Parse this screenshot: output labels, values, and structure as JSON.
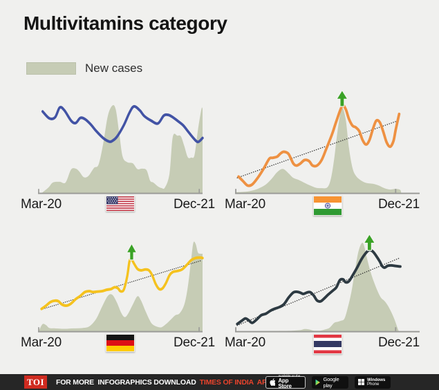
{
  "header": {
    "title": "Multivitamins category"
  },
  "legend": {
    "label": "New cases",
    "swatch_color": "#c6ccb5"
  },
  "colors": {
    "background": "#f0f0ee",
    "area": "#c6ccb5",
    "arrow_green": "#3aa226",
    "axis": "#9b9b98",
    "trend": "#2a2a2a"
  },
  "chart_data": [
    {
      "type": "area",
      "subtype": "line-over-area",
      "country": "United States",
      "flag": "us",
      "x_start_label": "Mar-20",
      "x_end_label": "Dec-21",
      "area_series_label": "New cases",
      "line_color": "#4253a5",
      "axis_ticks": [
        0.0,
        0.98
      ],
      "trend": null,
      "peak_arrow": null,
      "line": [
        [
          0.028,
          0.922
        ],
        [
          0.069,
          0.844
        ],
        [
          0.104,
          0.857
        ],
        [
          0.132,
          0.966
        ],
        [
          0.16,
          0.935
        ],
        [
          0.201,
          0.818
        ],
        [
          0.229,
          0.792
        ],
        [
          0.257,
          0.849
        ],
        [
          0.285,
          0.836
        ],
        [
          0.319,
          0.779
        ],
        [
          0.354,
          0.701
        ],
        [
          0.396,
          0.623
        ],
        [
          0.431,
          0.584
        ],
        [
          0.451,
          0.59
        ],
        [
          0.479,
          0.636
        ],
        [
          0.521,
          0.766
        ],
        [
          0.556,
          0.909
        ],
        [
          0.583,
          0.979
        ],
        [
          0.618,
          0.935
        ],
        [
          0.646,
          0.87
        ],
        [
          0.688,
          0.818
        ],
        [
          0.729,
          0.787
        ],
        [
          0.764,
          0.875
        ],
        [
          0.792,
          0.883
        ],
        [
          0.819,
          0.857
        ],
        [
          0.847,
          0.818
        ],
        [
          0.882,
          0.766
        ],
        [
          0.91,
          0.701
        ],
        [
          0.944,
          0.623
        ],
        [
          0.972,
          0.579
        ],
        [
          1.0,
          0.623
        ]
      ],
      "area": [
        [
          0.02,
          0.0
        ],
        [
          0.063,
          0.065
        ],
        [
          0.09,
          0.122
        ],
        [
          0.132,
          0.13
        ],
        [
          0.167,
          0.122
        ],
        [
          0.201,
          0.268
        ],
        [
          0.229,
          0.278
        ],
        [
          0.25,
          0.247
        ],
        [
          0.278,
          0.182
        ],
        [
          0.306,
          0.195
        ],
        [
          0.34,
          0.286
        ],
        [
          0.368,
          0.325
        ],
        [
          0.396,
          0.558
        ],
        [
          0.424,
          0.87
        ],
        [
          0.451,
          0.987
        ],
        [
          0.472,
          0.948
        ],
        [
          0.493,
          0.688
        ],
        [
          0.514,
          0.416
        ],
        [
          0.542,
          0.351
        ],
        [
          0.576,
          0.338
        ],
        [
          0.604,
          0.273
        ],
        [
          0.632,
          0.278
        ],
        [
          0.66,
          0.26
        ],
        [
          0.681,
          0.143
        ],
        [
          0.701,
          0.122
        ],
        [
          0.729,
          0.078
        ],
        [
          0.75,
          0.06
        ],
        [
          0.771,
          0.065
        ],
        [
          0.799,
          0.221
        ],
        [
          0.819,
          0.636
        ],
        [
          0.847,
          0.649
        ],
        [
          0.868,
          0.642
        ],
        [
          0.889,
          0.532
        ],
        [
          0.91,
          0.408
        ],
        [
          0.931,
          0.403
        ],
        [
          0.951,
          0.43
        ],
        [
          0.972,
          0.714
        ],
        [
          0.993,
          0.948
        ],
        [
          1.0,
          0.953
        ]
      ]
    },
    {
      "type": "area",
      "subtype": "line-over-area",
      "country": "India",
      "flag": "in",
      "x_start_label": "Mar-20",
      "x_end_label": "Dec-21",
      "area_series_label": "New cases",
      "line_color": "#ee9142",
      "axis_ticks": [
        0.0,
        0.87
      ],
      "trend": [
        [
          0.012,
          0.175
        ],
        [
          0.883,
          0.818
        ]
      ],
      "peak_arrow": [
        0.58,
        0.983
      ],
      "line": [
        [
          0.019,
          0.188
        ],
        [
          0.043,
          0.138
        ],
        [
          0.068,
          0.088
        ],
        [
          0.093,
          0.1
        ],
        [
          0.123,
          0.175
        ],
        [
          0.154,
          0.275
        ],
        [
          0.185,
          0.388
        ],
        [
          0.204,
          0.4
        ],
        [
          0.228,
          0.413
        ],
        [
          0.247,
          0.45
        ],
        [
          0.265,
          0.468
        ],
        [
          0.29,
          0.443
        ],
        [
          0.315,
          0.338
        ],
        [
          0.333,
          0.313
        ],
        [
          0.352,
          0.333
        ],
        [
          0.377,
          0.375
        ],
        [
          0.401,
          0.363
        ],
        [
          0.42,
          0.313
        ],
        [
          0.444,
          0.313
        ],
        [
          0.469,
          0.375
        ],
        [
          0.494,
          0.5
        ],
        [
          0.525,
          0.663
        ],
        [
          0.549,
          0.813
        ],
        [
          0.58,
          0.983
        ],
        [
          0.599,
          0.95
        ],
        [
          0.617,
          0.838
        ],
        [
          0.636,
          0.763
        ],
        [
          0.654,
          0.743
        ],
        [
          0.673,
          0.7
        ],
        [
          0.691,
          0.6
        ],
        [
          0.71,
          0.55
        ],
        [
          0.728,
          0.6
        ],
        [
          0.747,
          0.725
        ],
        [
          0.765,
          0.818
        ],
        [
          0.784,
          0.8
        ],
        [
          0.802,
          0.7
        ],
        [
          0.821,
          0.575
        ],
        [
          0.84,
          0.525
        ],
        [
          0.858,
          0.588
        ],
        [
          0.87,
          0.713
        ],
        [
          0.883,
          0.838
        ],
        [
          0.889,
          0.893
        ]
      ],
      "area": [
        [
          0.0,
          0.013
        ],
        [
          0.056,
          0.018
        ],
        [
          0.105,
          0.038
        ],
        [
          0.136,
          0.063
        ],
        [
          0.167,
          0.1
        ],
        [
          0.198,
          0.163
        ],
        [
          0.228,
          0.238
        ],
        [
          0.259,
          0.275
        ],
        [
          0.29,
          0.225
        ],
        [
          0.315,
          0.175
        ],
        [
          0.346,
          0.15
        ],
        [
          0.377,
          0.118
        ],
        [
          0.407,
          0.088
        ],
        [
          0.438,
          0.063
        ],
        [
          0.469,
          0.058
        ],
        [
          0.5,
          0.068
        ],
        [
          0.519,
          0.163
        ],
        [
          0.537,
          0.388
        ],
        [
          0.556,
          0.713
        ],
        [
          0.578,
          0.955
        ],
        [
          0.599,
          0.838
        ],
        [
          0.617,
          0.513
        ],
        [
          0.636,
          0.288
        ],
        [
          0.654,
          0.2
        ],
        [
          0.679,
          0.15
        ],
        [
          0.71,
          0.118
        ],
        [
          0.747,
          0.108
        ],
        [
          0.778,
          0.088
        ],
        [
          0.809,
          0.058
        ],
        [
          0.84,
          0.043
        ],
        [
          0.87,
          0.05
        ],
        [
          0.895,
          0.038
        ],
        [
          0.9,
          0.0
        ]
      ]
    },
    {
      "type": "area",
      "subtype": "line-over-area",
      "country": "Germany",
      "flag": "de",
      "x_start_label": "Mar-20",
      "x_end_label": "Dec-21",
      "area_series_label": "New cases",
      "line_color": "#f5c21e",
      "axis_ticks": [
        0.0,
        0.979
      ],
      "trend": [
        [
          0.02,
          0.25
        ],
        [
          0.986,
          0.797
        ]
      ],
      "peak_arrow": [
        0.569,
        0.812
      ],
      "line": [
        [
          0.021,
          0.256
        ],
        [
          0.049,
          0.293
        ],
        [
          0.076,
          0.334
        ],
        [
          0.104,
          0.349
        ],
        [
          0.125,
          0.341
        ],
        [
          0.146,
          0.305
        ],
        [
          0.174,
          0.293
        ],
        [
          0.201,
          0.317
        ],
        [
          0.229,
          0.366
        ],
        [
          0.257,
          0.402
        ],
        [
          0.285,
          0.446
        ],
        [
          0.313,
          0.456
        ],
        [
          0.333,
          0.446
        ],
        [
          0.361,
          0.451
        ],
        [
          0.389,
          0.456
        ],
        [
          0.417,
          0.471
        ],
        [
          0.444,
          0.48
        ],
        [
          0.465,
          0.5
        ],
        [
          0.486,
          0.488
        ],
        [
          0.5,
          0.456
        ],
        [
          0.521,
          0.471
        ],
        [
          0.542,
          0.622
        ],
        [
          0.556,
          0.793
        ],
        [
          0.569,
          0.812
        ],
        [
          0.583,
          0.768
        ],
        [
          0.604,
          0.707
        ],
        [
          0.625,
          0.69
        ],
        [
          0.653,
          0.7
        ],
        [
          0.674,
          0.69
        ],
        [
          0.694,
          0.634
        ],
        [
          0.715,
          0.537
        ],
        [
          0.736,
          0.48
        ],
        [
          0.757,
          0.488
        ],
        [
          0.778,
          0.549
        ],
        [
          0.799,
          0.634
        ],
        [
          0.819,
          0.671
        ],
        [
          0.847,
          0.683
        ],
        [
          0.875,
          0.7
        ],
        [
          0.903,
          0.749
        ],
        [
          0.931,
          0.805
        ],
        [
          0.958,
          0.829
        ],
        [
          0.986,
          0.834
        ],
        [
          1.0,
          0.829
        ]
      ],
      "area": [
        [
          0.007,
          0.017
        ],
        [
          0.028,
          0.085
        ],
        [
          0.049,
          0.073
        ],
        [
          0.069,
          0.041
        ],
        [
          0.104,
          0.037
        ],
        [
          0.16,
          0.032
        ],
        [
          0.215,
          0.037
        ],
        [
          0.271,
          0.041
        ],
        [
          0.313,
          0.061
        ],
        [
          0.354,
          0.146
        ],
        [
          0.389,
          0.28
        ],
        [
          0.424,
          0.402
        ],
        [
          0.451,
          0.415
        ],
        [
          0.479,
          0.329
        ],
        [
          0.507,
          0.207
        ],
        [
          0.528,
          0.163
        ],
        [
          0.549,
          0.207
        ],
        [
          0.576,
          0.305
        ],
        [
          0.604,
          0.398
        ],
        [
          0.625,
          0.354
        ],
        [
          0.653,
          0.232
        ],
        [
          0.674,
          0.146
        ],
        [
          0.694,
          0.085
        ],
        [
          0.722,
          0.056
        ],
        [
          0.75,
          0.049
        ],
        [
          0.778,
          0.085
        ],
        [
          0.806,
          0.134
        ],
        [
          0.833,
          0.183
        ],
        [
          0.861,
          0.207
        ],
        [
          0.889,
          0.305
        ],
        [
          0.91,
          0.5
        ],
        [
          0.931,
          0.817
        ],
        [
          0.944,
          1.0
        ],
        [
          0.958,
          0.988
        ],
        [
          0.972,
          0.89
        ],
        [
          0.986,
          0.878
        ],
        [
          1.0,
          0.878
        ]
      ]
    },
    {
      "type": "area",
      "subtype": "line-over-area",
      "country": "Thailand",
      "flag": "th",
      "x_start_label": "Mar-20",
      "x_end_label": "Dec-21",
      "area_series_label": "New cases",
      "line_color": "#2d3a42",
      "axis_ticks": [
        0.0,
        0.87
      ],
      "trend": [
        [
          0.012,
          0.07
        ],
        [
          0.889,
          0.827
        ]
      ],
      "peak_arrow": [
        0.728,
        0.919
      ],
      "line": [
        [
          0.012,
          0.086
        ],
        [
          0.037,
          0.123
        ],
        [
          0.056,
          0.148
        ],
        [
          0.074,
          0.128
        ],
        [
          0.093,
          0.099
        ],
        [
          0.117,
          0.136
        ],
        [
          0.142,
          0.185
        ],
        [
          0.167,
          0.202
        ],
        [
          0.191,
          0.235
        ],
        [
          0.216,
          0.259
        ],
        [
          0.241,
          0.277
        ],
        [
          0.265,
          0.309
        ],
        [
          0.29,
          0.383
        ],
        [
          0.315,
          0.44
        ],
        [
          0.333,
          0.449
        ],
        [
          0.352,
          0.44
        ],
        [
          0.37,
          0.425
        ],
        [
          0.389,
          0.44
        ],
        [
          0.407,
          0.444
        ],
        [
          0.426,
          0.407
        ],
        [
          0.444,
          0.351
        ],
        [
          0.463,
          0.341
        ],
        [
          0.481,
          0.37
        ],
        [
          0.506,
          0.42
        ],
        [
          0.531,
          0.464
        ],
        [
          0.549,
          0.499
        ],
        [
          0.568,
          0.58
        ],
        [
          0.586,
          0.588
        ],
        [
          0.599,
          0.556
        ],
        [
          0.617,
          0.568
        ],
        [
          0.636,
          0.63
        ],
        [
          0.66,
          0.716
        ],
        [
          0.685,
          0.815
        ],
        [
          0.71,
          0.889
        ],
        [
          0.728,
          0.919
        ],
        [
          0.747,
          0.901
        ],
        [
          0.765,
          0.852
        ],
        [
          0.784,
          0.79
        ],
        [
          0.796,
          0.741
        ],
        [
          0.809,
          0.721
        ],
        [
          0.827,
          0.741
        ],
        [
          0.846,
          0.746
        ],
        [
          0.864,
          0.741
        ],
        [
          0.883,
          0.736
        ],
        [
          0.895,
          0.733
        ]
      ],
      "area": [
        [
          0.0,
          0.005
        ],
        [
          0.1,
          0.005
        ],
        [
          0.2,
          0.008
        ],
        [
          0.3,
          0.01
        ],
        [
          0.352,
          0.017
        ],
        [
          0.377,
          0.03
        ],
        [
          0.401,
          0.025
        ],
        [
          0.426,
          0.012
        ],
        [
          0.463,
          0.012
        ],
        [
          0.488,
          0.025
        ],
        [
          0.512,
          0.044
        ],
        [
          0.537,
          0.099
        ],
        [
          0.556,
          0.111
        ],
        [
          0.574,
          0.123
        ],
        [
          0.593,
          0.148
        ],
        [
          0.611,
          0.272
        ],
        [
          0.63,
          0.444
        ],
        [
          0.648,
          0.667
        ],
        [
          0.667,
          0.889
        ],
        [
          0.685,
          0.993
        ],
        [
          0.698,
          0.975
        ],
        [
          0.716,
          0.815
        ],
        [
          0.735,
          0.667
        ],
        [
          0.753,
          0.556
        ],
        [
          0.772,
          0.457
        ],
        [
          0.79,
          0.383
        ],
        [
          0.809,
          0.346
        ],
        [
          0.827,
          0.296
        ],
        [
          0.846,
          0.222
        ],
        [
          0.864,
          0.136
        ],
        [
          0.883,
          0.025
        ],
        [
          0.889,
          0.0
        ]
      ]
    }
  ],
  "footer": {
    "logo": "TOI",
    "text_white": "FOR MORE  INFOGRAPHICS DOWNLOAD",
    "text_red": "TIMES OF INDIA  APP",
    "badges": {
      "appstore_top": "Available on the",
      "appstore_bottom": "App Store",
      "gplay": "Google play",
      "windows_top": "Windows",
      "windows_bottom": "Phone"
    }
  }
}
